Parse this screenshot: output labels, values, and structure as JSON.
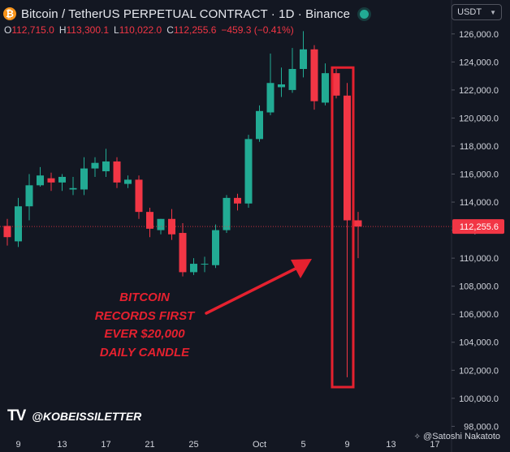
{
  "header": {
    "title": "Bitcoin / TetherUS PERPETUAL CONTRACT · 1D · Binance",
    "coin_symbol": "₿",
    "coin_color": "#f7931a",
    "live_color": "#22ab94"
  },
  "ohlc": {
    "open_label": "O",
    "open": "112,715.0",
    "high_label": "H",
    "high": "113,300.1",
    "low_label": "L",
    "low": "110,022.0",
    "close_label": "C",
    "close": "112,255.6",
    "change": "−459.3 (−0.41%)"
  },
  "currency_selector": {
    "label": "USDT"
  },
  "annotation": {
    "lines": [
      "BITCOIN",
      "RECORDS FIRST",
      "EVER $20,000",
      "DAILY CANDLE"
    ],
    "color": "#e5212f"
  },
  "branding": {
    "logo": "TV",
    "handle": "@KOBEISSILETTER"
  },
  "credit": {
    "text": "@Satoshi Nakatoto"
  },
  "colors": {
    "up": "#22ab94",
    "down": "#f23645",
    "background": "#131722",
    "price_line": "#f23645"
  },
  "chart_data": {
    "type": "candlestick",
    "y_range": [
      97500,
      126800
    ],
    "y_ticks": [
      98000,
      100000,
      102000,
      104000,
      106000,
      108000,
      110000,
      112000,
      114000,
      116000,
      118000,
      120000,
      122000,
      124000,
      126000
    ],
    "y_tick_labels": [
      "98,000.0",
      "100,000.0",
      "102,000.0",
      "104,000.0",
      "106,000.0",
      "108,000.0",
      "110,000.0",
      "112,000.0",
      "114,000.0",
      "116,000.0",
      "118,000.0",
      "120,000.0",
      "122,000.0",
      "124,000.0",
      "126,000.0"
    ],
    "x_ticks": [
      {
        "label": "9",
        "index": 1
      },
      {
        "label": "13",
        "index": 5
      },
      {
        "label": "17",
        "index": 9
      },
      {
        "label": "21",
        "index": 13
      },
      {
        "label": "25",
        "index": 17
      },
      {
        "label": "Oct",
        "index": 23
      },
      {
        "label": "5",
        "index": 27
      },
      {
        "label": "9",
        "index": 31
      },
      {
        "label": "13",
        "index": 35
      },
      {
        "label": "17",
        "index": 39
      }
    ],
    "last_price": 112255.6,
    "last_price_label": "112,255.6",
    "highlight_range": [
      100800,
      123600
    ],
    "candles": [
      {
        "o": 112300,
        "h": 112800,
        "l": 110900,
        "c": 111500
      },
      {
        "o": 111200,
        "h": 114300,
        "l": 110800,
        "c": 113700
      },
      {
        "o": 113700,
        "h": 116000,
        "l": 112700,
        "c": 115200
      },
      {
        "o": 115200,
        "h": 116500,
        "l": 115100,
        "c": 115900
      },
      {
        "o": 115700,
        "h": 116100,
        "l": 114800,
        "c": 115400
      },
      {
        "o": 115400,
        "h": 116000,
        "l": 114800,
        "c": 115800
      },
      {
        "o": 114900,
        "h": 115800,
        "l": 114500,
        "c": 115000
      },
      {
        "o": 114900,
        "h": 117200,
        "l": 114500,
        "c": 116400
      },
      {
        "o": 116400,
        "h": 117200,
        "l": 115800,
        "c": 116800
      },
      {
        "o": 116200,
        "h": 117800,
        "l": 115800,
        "c": 116900
      },
      {
        "o": 116900,
        "h": 117200,
        "l": 115000,
        "c": 115400
      },
      {
        "o": 115300,
        "h": 115900,
        "l": 115000,
        "c": 115600
      },
      {
        "o": 115600,
        "h": 115900,
        "l": 112800,
        "c": 113300
      },
      {
        "o": 113300,
        "h": 113600,
        "l": 111500,
        "c": 112100
      },
      {
        "o": 112000,
        "h": 112800,
        "l": 111700,
        "c": 112800
      },
      {
        "o": 112800,
        "h": 113500,
        "l": 111300,
        "c": 111700
      },
      {
        "o": 111800,
        "h": 112500,
        "l": 108700,
        "c": 109000
      },
      {
        "o": 109000,
        "h": 110000,
        "l": 108800,
        "c": 109600
      },
      {
        "o": 109600,
        "h": 110100,
        "l": 109000,
        "c": 109600
      },
      {
        "o": 109500,
        "h": 112400,
        "l": 109300,
        "c": 112000
      },
      {
        "o": 112000,
        "h": 114500,
        "l": 111800,
        "c": 114300
      },
      {
        "o": 114300,
        "h": 114600,
        "l": 113400,
        "c": 113900
      },
      {
        "o": 113900,
        "h": 118800,
        "l": 113600,
        "c": 118500
      },
      {
        "o": 118500,
        "h": 120900,
        "l": 118300,
        "c": 120500
      },
      {
        "o": 120400,
        "h": 124600,
        "l": 120200,
        "c": 122500
      },
      {
        "o": 122200,
        "h": 123600,
        "l": 121500,
        "c": 122400
      },
      {
        "o": 122000,
        "h": 125000,
        "l": 121800,
        "c": 123500
      },
      {
        "o": 123500,
        "h": 126200,
        "l": 122900,
        "c": 124900
      },
      {
        "o": 124900,
        "h": 125200,
        "l": 120600,
        "c": 121200
      },
      {
        "o": 121100,
        "h": 123900,
        "l": 120900,
        "c": 123200
      },
      {
        "o": 123200,
        "h": 123500,
        "l": 121400,
        "c": 121600
      },
      {
        "o": 121600,
        "h": 122500,
        "l": 101500,
        "c": 112700
      },
      {
        "o": 112700,
        "h": 113300,
        "l": 110000,
        "c": 112255.6
      }
    ]
  }
}
